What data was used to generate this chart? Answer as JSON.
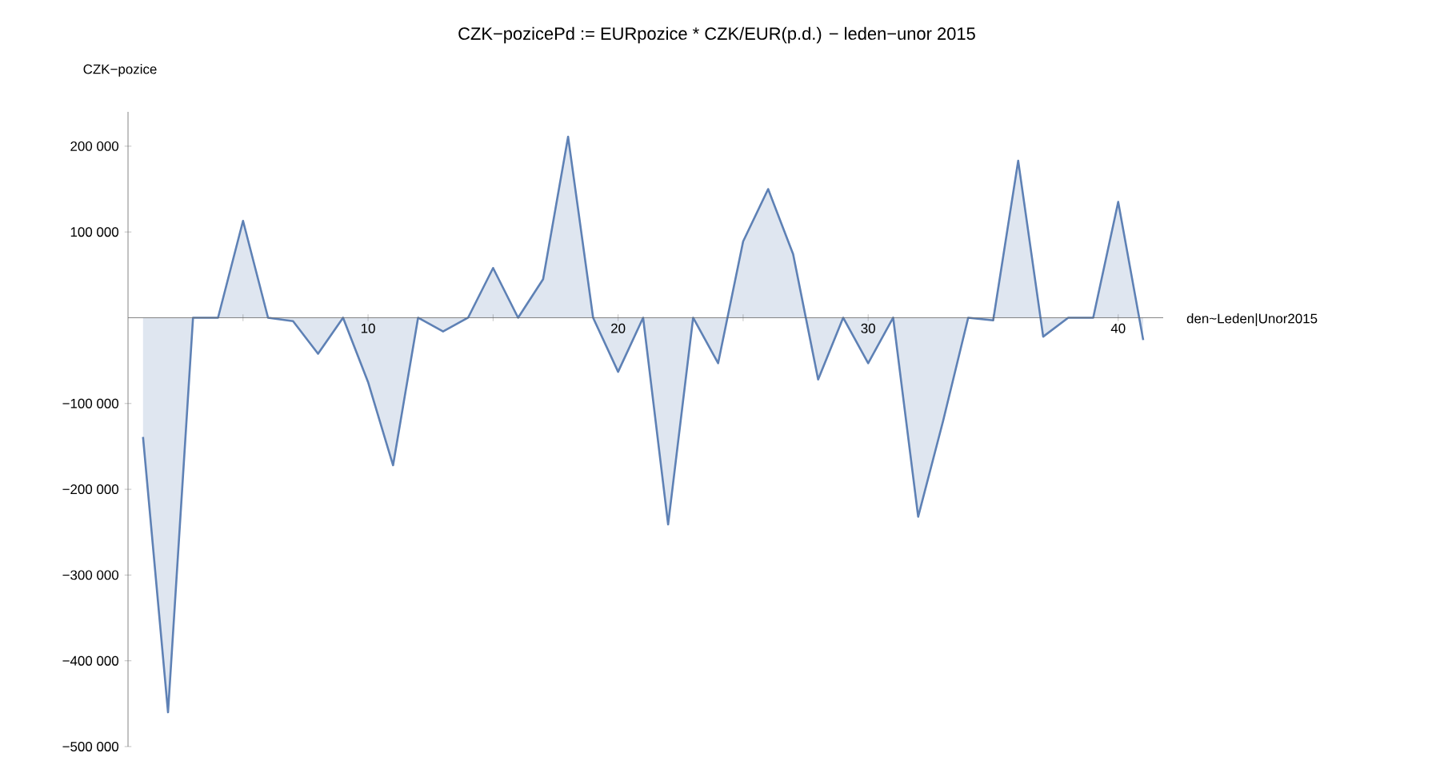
{
  "chart_data": {
    "type": "area",
    "title": "CZK−pozicePd := EURpozice * CZK/EUR(p.d.) − leden−unor 2015",
    "xlabel": "den~Leden|Unor2015",
    "ylabel": "CZK−pozice",
    "x": [
      1,
      2,
      3,
      4,
      5,
      6,
      7,
      8,
      9,
      10,
      11,
      12,
      13,
      14,
      15,
      16,
      17,
      18,
      19,
      20,
      21,
      22,
      23,
      24,
      25,
      26,
      27,
      28,
      29,
      30,
      31,
      32,
      33,
      34,
      35,
      36,
      37,
      38,
      39,
      40,
      41
    ],
    "series": [
      {
        "color": "#5e81b5",
        "values": [
          -139000,
          -460000,
          0,
          0,
          113000,
          0,
          -4000,
          -42000,
          0,
          -75000,
          -172000,
          0,
          -16000,
          0,
          58000,
          0,
          45000,
          211000,
          0,
          -63000,
          0,
          -241000,
          0,
          -53000,
          89000,
          150000,
          74000,
          -72000,
          0,
          -53000,
          0,
          -232000,
          -120000,
          0,
          -3000,
          183000,
          -22000,
          0,
          0,
          135000,
          -26000
        ]
      }
    ],
    "xlim": [
      0.4,
      41.8
    ],
    "ylim": [
      -500000,
      240000
    ],
    "xticks": [
      {
        "value": 5,
        "label": null
      },
      10,
      {
        "value": 15,
        "label": null
      },
      20,
      {
        "value": 25,
        "label": null
      },
      30,
      {
        "value": 35,
        "label": null
      },
      40
    ],
    "yticks": [
      {
        "value": -500000,
        "label": "−500 000"
      },
      {
        "value": -400000,
        "label": "−400 000"
      },
      {
        "value": -300000,
        "label": "−300 000"
      },
      {
        "value": -200000,
        "label": "−200 000"
      },
      {
        "value": -100000,
        "label": "−100 000"
      },
      {
        "value": 100000,
        "label": "100 000"
      },
      {
        "value": 200000,
        "label": "200 000"
      }
    ],
    "grid": false
  }
}
